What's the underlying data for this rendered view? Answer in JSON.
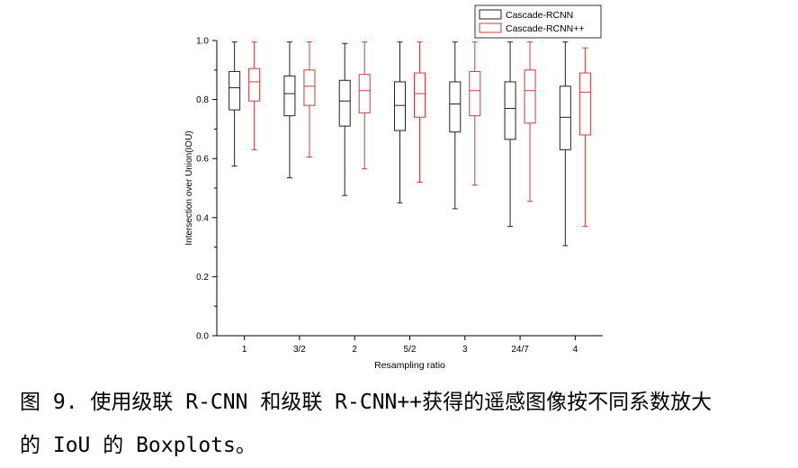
{
  "caption": {
    "line1": "图 9. 使用级联 R-CNN 和级联 R-CNN++获得的遥感图像按不同系数放大",
    "line2": "的 IoU 的 Boxplots。"
  },
  "chart_data": {
    "type": "boxplot",
    "xlabel": "Resampling ratio",
    "ylabel": "Intersection over Union(IOU)",
    "ylim": [
      0,
      1.0
    ],
    "yticks": [
      "0.0",
      "0.2",
      "0.4",
      "0.6",
      "0.8",
      "1.0"
    ],
    "categories": [
      "1",
      "3/2",
      "2",
      "5/2",
      "3",
      "24/7",
      "4"
    ],
    "legend_position": "top-right",
    "grid": false,
    "series": [
      {
        "name": "Cascade-RCNN",
        "color": "#222222",
        "boxes": [
          {
            "min": 0.575,
            "q1": 0.765,
            "median": 0.84,
            "q3": 0.895,
            "max": 0.995
          },
          {
            "min": 0.535,
            "q1": 0.745,
            "median": 0.82,
            "q3": 0.88,
            "max": 0.995
          },
          {
            "min": 0.475,
            "q1": 0.71,
            "median": 0.795,
            "q3": 0.865,
            "max": 0.99
          },
          {
            "min": 0.45,
            "q1": 0.695,
            "median": 0.78,
            "q3": 0.86,
            "max": 0.995
          },
          {
            "min": 0.43,
            "q1": 0.69,
            "median": 0.785,
            "q3": 0.86,
            "max": 0.995
          },
          {
            "min": 0.37,
            "q1": 0.665,
            "median": 0.77,
            "q3": 0.86,
            "max": 0.995
          },
          {
            "min": 0.305,
            "q1": 0.63,
            "median": 0.74,
            "q3": 0.845,
            "max": 0.995
          }
        ]
      },
      {
        "name": "Cascade-RCNN++",
        "color": "#c83c3c",
        "boxes": [
          {
            "min": 0.63,
            "q1": 0.795,
            "median": 0.86,
            "q3": 0.905,
            "max": 0.995
          },
          {
            "min": 0.605,
            "q1": 0.78,
            "median": 0.845,
            "q3": 0.9,
            "max": 0.995
          },
          {
            "min": 0.565,
            "q1": 0.755,
            "median": 0.83,
            "q3": 0.885,
            "max": 0.995
          },
          {
            "min": 0.52,
            "q1": 0.74,
            "median": 0.82,
            "q3": 0.89,
            "max": 0.995
          },
          {
            "min": 0.51,
            "q1": 0.745,
            "median": 0.83,
            "q3": 0.895,
            "max": 0.995
          },
          {
            "min": 0.455,
            "q1": 0.72,
            "median": 0.83,
            "q3": 0.9,
            "max": 0.995
          },
          {
            "min": 0.37,
            "q1": 0.68,
            "median": 0.825,
            "q3": 0.89,
            "max": 0.975
          }
        ]
      }
    ]
  }
}
